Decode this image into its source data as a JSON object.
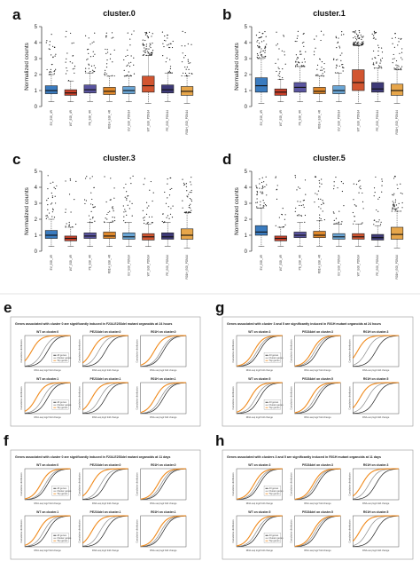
{
  "boxplot_categories": [
    "EV_EGI_4R",
    "WT_EGI_4R",
    "PE_EGI_4R",
    "R01H_EGI_4R",
    "EV_EGI_PDN14",
    "WT_EGI_PDN14",
    "PE_EGI_PDN14",
    "R01H_EGI_PDN14"
  ],
  "box_colors": [
    "#3a7bbf",
    "#c8402a",
    "#5a55a0",
    "#e0892c",
    "#6aa6d6",
    "#d25530",
    "#3e3a78",
    "#e7a64a"
  ],
  "chart_data": [
    {
      "type": "box",
      "panel": "a",
      "title": "cluster.0",
      "ylabel": "Normalized counts",
      "ylim": [
        0,
        5
      ],
      "yticks": [
        0,
        1,
        2,
        3,
        4,
        5
      ],
      "categories": [
        "EV_EGI_4R",
        "WT_EGI_4R",
        "PE_EGI_4R",
        "R01H_EGI_4R",
        "EV_EGI_PDN14",
        "WT_EGI_PDN14",
        "PE_EGI_PDN14",
        "R01H_EGI_PDN14"
      ],
      "boxes": [
        {
          "q1": 0.8,
          "median": 1.0,
          "q3": 1.3,
          "whisker_low": 0.3,
          "whisker_high": 2.0
        },
        {
          "q1": 0.7,
          "median": 0.85,
          "q3": 1.05,
          "whisker_low": 0.3,
          "whisker_high": 1.6
        },
        {
          "q1": 0.85,
          "median": 1.05,
          "q3": 1.35,
          "whisker_low": 0.3,
          "whisker_high": 2.1
        },
        {
          "q1": 0.75,
          "median": 0.95,
          "q3": 1.2,
          "whisker_low": 0.3,
          "whisker_high": 1.9
        },
        {
          "q1": 0.8,
          "median": 1.0,
          "q3": 1.25,
          "whisker_low": 0.3,
          "whisker_high": 1.9
        },
        {
          "q1": 0.9,
          "median": 1.3,
          "q3": 1.9,
          "whisker_low": 0.2,
          "whisker_high": 3.2
        },
        {
          "q1": 0.85,
          "median": 1.05,
          "q3": 1.35,
          "whisker_low": 0.3,
          "whisker_high": 2.1
        },
        {
          "q1": 0.7,
          "median": 0.95,
          "q3": 1.25,
          "whisker_low": 0.2,
          "whisker_high": 1.9
        }
      ]
    },
    {
      "type": "box",
      "panel": "b",
      "title": "cluster.1",
      "ylabel": "Normalized counts",
      "ylim": [
        0,
        5
      ],
      "yticks": [
        0,
        1,
        2,
        3,
        4,
        5
      ],
      "categories": [
        "EV_EGI_4R",
        "WT_EGI_4R",
        "PE_EGI_4R",
        "R01H_EGI_4R",
        "EV_EGI_PDN14",
        "WT_EGI_PDN14",
        "PE_EGI_PDN14",
        "R01H_EGI_PDN14"
      ],
      "boxes": [
        {
          "q1": 0.9,
          "median": 1.3,
          "q3": 1.8,
          "whisker_low": 0.2,
          "whisker_high": 3.0
        },
        {
          "q1": 0.7,
          "median": 0.9,
          "q3": 1.1,
          "whisker_low": 0.3,
          "whisker_high": 1.7
        },
        {
          "q1": 0.9,
          "median": 1.2,
          "q3": 1.5,
          "whisker_low": 0.3,
          "whisker_high": 2.5
        },
        {
          "q1": 0.8,
          "median": 0.95,
          "q3": 1.2,
          "whisker_low": 0.3,
          "whisker_high": 1.9
        },
        {
          "q1": 0.8,
          "median": 1.0,
          "q3": 1.3,
          "whisker_low": 0.3,
          "whisker_high": 2.1
        },
        {
          "q1": 1.0,
          "median": 1.5,
          "q3": 2.3,
          "whisker_low": 0.2,
          "whisker_high": 3.8
        },
        {
          "q1": 0.9,
          "median": 1.1,
          "q3": 1.5,
          "whisker_low": 0.3,
          "whisker_high": 2.4
        },
        {
          "q1": 0.7,
          "median": 1.0,
          "q3": 1.4,
          "whisker_low": 0.2,
          "whisker_high": 2.3
        }
      ]
    },
    {
      "type": "box",
      "panel": "c",
      "title": "cluster.3",
      "ylabel": "Normalized counts",
      "ylim": [
        0,
        5
      ],
      "yticks": [
        0,
        1,
        2,
        3,
        4,
        5
      ],
      "categories": [
        "EV_EGI_4R",
        "WT_EGI_4R",
        "PE_EGI_4R",
        "R01H_EGI_4R",
        "EV_EGI_PDN14",
        "WT_EGI_PDN14",
        "PE_EGI_PDN14",
        "R01H_EGI_PDN14"
      ],
      "boxes": [
        {
          "q1": 0.8,
          "median": 1.0,
          "q3": 1.3,
          "whisker_low": 0.3,
          "whisker_high": 2.0
        },
        {
          "q1": 0.65,
          "median": 0.8,
          "q3": 0.95,
          "whisker_low": 0.3,
          "whisker_high": 1.5
        },
        {
          "q1": 0.8,
          "median": 0.95,
          "q3": 1.15,
          "whisker_low": 0.3,
          "whisker_high": 1.8
        },
        {
          "q1": 0.8,
          "median": 0.95,
          "q3": 1.2,
          "whisker_low": 0.3,
          "whisker_high": 1.8
        },
        {
          "q1": 0.75,
          "median": 0.9,
          "q3": 1.15,
          "whisker_low": 0.3,
          "whisker_high": 1.8
        },
        {
          "q1": 0.7,
          "median": 0.9,
          "q3": 1.1,
          "whisker_low": 0.3,
          "whisker_high": 1.7
        },
        {
          "q1": 0.75,
          "median": 0.9,
          "q3": 1.15,
          "whisker_low": 0.3,
          "whisker_high": 1.8
        },
        {
          "q1": 0.75,
          "median": 1.0,
          "q3": 1.4,
          "whisker_low": 0.2,
          "whisker_high": 2.4
        }
      ]
    },
    {
      "type": "box",
      "panel": "d",
      "title": "cluster.5",
      "ylabel": "Normalized counts",
      "ylim": [
        0,
        5
      ],
      "yticks": [
        0,
        1,
        2,
        3,
        4,
        5
      ],
      "categories": [
        "EV_EGI_4R",
        "WT_EGI_4R",
        "PE_EGI_4R",
        "R01H_EGI_4R",
        "EV_EGI_PDN14",
        "WT_EGI_PDN14",
        "PE_EGI_PDN14",
        "R01H_EGI_PDN14"
      ],
      "boxes": [
        {
          "q1": 1.0,
          "median": 1.2,
          "q3": 1.6,
          "whisker_low": 0.3,
          "whisker_high": 2.7
        },
        {
          "q1": 0.65,
          "median": 0.8,
          "q3": 0.95,
          "whisker_low": 0.3,
          "whisker_high": 1.5
        },
        {
          "q1": 0.85,
          "median": 1.0,
          "q3": 1.2,
          "whisker_low": 0.3,
          "whisker_high": 1.8
        },
        {
          "q1": 0.85,
          "median": 1.0,
          "q3": 1.25,
          "whisker_low": 0.3,
          "whisker_high": 1.9
        },
        {
          "q1": 0.75,
          "median": 0.9,
          "q3": 1.1,
          "whisker_low": 0.3,
          "whisker_high": 1.7
        },
        {
          "q1": 0.75,
          "median": 0.9,
          "q3": 1.1,
          "whisker_low": 0.3,
          "whisker_high": 1.7
        },
        {
          "q1": 0.7,
          "median": 0.85,
          "q3": 1.05,
          "whisker_low": 0.3,
          "whisker_high": 1.6
        },
        {
          "q1": 0.75,
          "median": 1.05,
          "q3": 1.5,
          "whisker_low": 0.2,
          "whisker_high": 2.5
        }
      ]
    }
  ],
  "cdf_panels": [
    {
      "label": "e",
      "header": "Genes associated with cluster 0 are significantly induced in F234-E253del mutant organoids at 24 hours",
      "subplots": [
        {
          "title": "WT on cluster.0",
          "curves": [
            0.0,
            0.1,
            0.35
          ]
        },
        {
          "title": "PE234del on cluster.0",
          "curves": [
            0.0,
            0.15,
            0.3
          ]
        },
        {
          "title": "R01H on cluster.0",
          "curves": [
            0.0,
            0.05,
            0.2
          ]
        },
        {
          "title": "WT on cluster.1",
          "curves": [
            0.0,
            0.1,
            0.25
          ]
        },
        {
          "title": "PE234del on cluster.1",
          "curves": [
            0.0,
            0.12,
            0.3
          ]
        },
        {
          "title": "R01H on cluster.1",
          "curves": [
            0.0,
            0.06,
            0.18
          ]
        }
      ]
    },
    {
      "label": "g",
      "header": "Genes associated with cluster 3 and 5 are significantly induced in R01H mutant organoids at 24 hours",
      "subplots": [
        {
          "title": "WT on cluster.3",
          "curves": [
            0.0,
            0.05,
            0.12
          ]
        },
        {
          "title": "PE234del on cluster.3",
          "curves": [
            0.0,
            0.06,
            0.12
          ]
        },
        {
          "title": "R01H on cluster.3",
          "curves": [
            0.0,
            0.2,
            0.4
          ]
        },
        {
          "title": "WT on cluster.5",
          "curves": [
            0.0,
            0.08,
            0.2
          ]
        },
        {
          "title": "PE234del on cluster.5",
          "curves": [
            0.0,
            0.06,
            0.15
          ]
        },
        {
          "title": "R01H on cluster.5",
          "curves": [
            0.0,
            0.18,
            0.35
          ]
        }
      ]
    },
    {
      "label": "f",
      "header": "Genes associated with cluster 0 are significantly induced in F234-E253del mutant organoids at 11 days",
      "subplots": [
        {
          "title": "WT on cluster.0",
          "curves": [
            0.0,
            0.05,
            0.15
          ]
        },
        {
          "title": "PE234del on cluster.0",
          "curves": [
            0.0,
            0.1,
            0.3
          ]
        },
        {
          "title": "R01H on cluster.0",
          "curves": [
            0.0,
            0.05,
            0.12
          ]
        },
        {
          "title": "WT on cluster.1",
          "curves": [
            0.0,
            0.08,
            0.2
          ]
        },
        {
          "title": "PE234del on cluster.1",
          "curves": [
            0.0,
            0.12,
            0.3
          ]
        },
        {
          "title": "R01H on cluster.1",
          "curves": [
            0.0,
            0.05,
            0.12
          ]
        }
      ]
    },
    {
      "label": "h",
      "header": "Genes associated with clusters 3 and 5 are significantly induced in R01H mutant organoids at 11 days",
      "subplots": [
        {
          "title": "WT on cluster.3",
          "curves": [
            0.0,
            0.05,
            0.12
          ]
        },
        {
          "title": "PE234del on cluster.3",
          "curves": [
            0.0,
            0.05,
            0.1
          ]
        },
        {
          "title": "R01H on cluster.3",
          "curves": [
            0.0,
            0.15,
            0.3
          ]
        },
        {
          "title": "WT on cluster.5",
          "curves": [
            0.0,
            0.06,
            0.15
          ]
        },
        {
          "title": "PE234del on cluster.5",
          "curves": [
            0.0,
            0.05,
            0.1
          ]
        },
        {
          "title": "R01H on cluster.5",
          "curves": [
            0.0,
            0.18,
            0.35
          ]
        }
      ]
    }
  ],
  "cdf_axis": {
    "xlabel": "RNA-seq log2 fold change",
    "ylabel": "Cumulative distribution",
    "legend": [
      "All genes",
      "Cluster genes",
      "Top genes"
    ]
  },
  "cdf_colors": [
    "#1a1a1a",
    "#8a8a8a",
    "#f08a1c"
  ]
}
